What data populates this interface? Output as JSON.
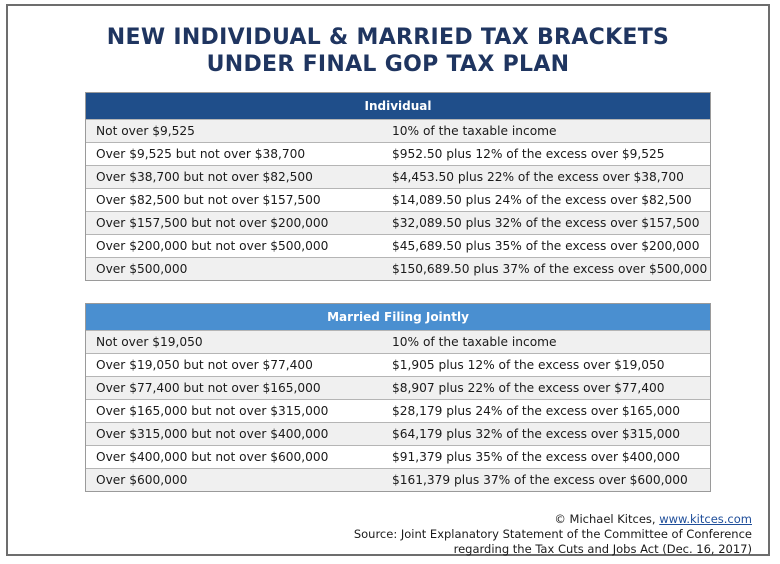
{
  "title_line1": "NEW INDIVIDUAL & MARRIED TAX BRACKETS",
  "title_line2": "UNDER FINAL GOP TAX PLAN",
  "individual": {
    "header": "Individual",
    "rows": [
      {
        "range": "Not over $9,525",
        "tax": "10% of the taxable income"
      },
      {
        "range": "Over $9,525 but not over $38,700",
        "tax": "$952.50 plus 12% of the excess over $9,525"
      },
      {
        "range": "Over $38,700 but not over $82,500",
        "tax": "$4,453.50 plus 22% of the excess over $38,700"
      },
      {
        "range": "Over $82,500 but not over $157,500",
        "tax": "$14,089.50 plus 24% of the excess over $82,500"
      },
      {
        "range": "Over $157,500 but not over $200,000",
        "tax": "$32,089.50 plus 32% of the excess over $157,500"
      },
      {
        "range": "Over $200,000 but not over $500,000",
        "tax": "$45,689.50 plus 35% of the excess over $200,000"
      },
      {
        "range": "Over $500,000",
        "tax": "$150,689.50 plus 37% of the excess over $500,000"
      }
    ]
  },
  "married": {
    "header": "Married Filing Jointly",
    "rows": [
      {
        "range": "Not over $19,050",
        "tax": "10% of the taxable income"
      },
      {
        "range": "Over $19,050 but not over $77,400",
        "tax": "$1,905 plus 12% of the excess over $19,050"
      },
      {
        "range": "Over $77,400 but not over $165,000",
        "tax": "$8,907 plus 22% of the excess over $77,400"
      },
      {
        "range": "Over $165,000 but not over $315,000",
        "tax": "$28,179 plus 24% of the excess over $165,000"
      },
      {
        "range": "Over $315,000 but not over $400,000",
        "tax": "$64,179 plus 32% of the excess over $315,000"
      },
      {
        "range": "Over $400,000 but not over $600,000",
        "tax": "$91,379 plus 35% of the excess over $400,000"
      },
      {
        "range": "Over $600,000",
        "tax": "$161,379 plus 37% of the excess over $600,000"
      }
    ]
  },
  "footer": {
    "credit": "© Michael Kitces,",
    "link": "www.kitces.com",
    "source_line1": "Source: Joint Explanatory Statement of the Committee of Conference",
    "source_line2": "regarding the Tax Cuts and Jobs Act (Dec. 16, 2017)"
  },
  "colors": {
    "title": "#1f3560",
    "individual_header": "#1f4e8a",
    "married_header": "#4a8fd0",
    "link": "#1f4e9a"
  }
}
